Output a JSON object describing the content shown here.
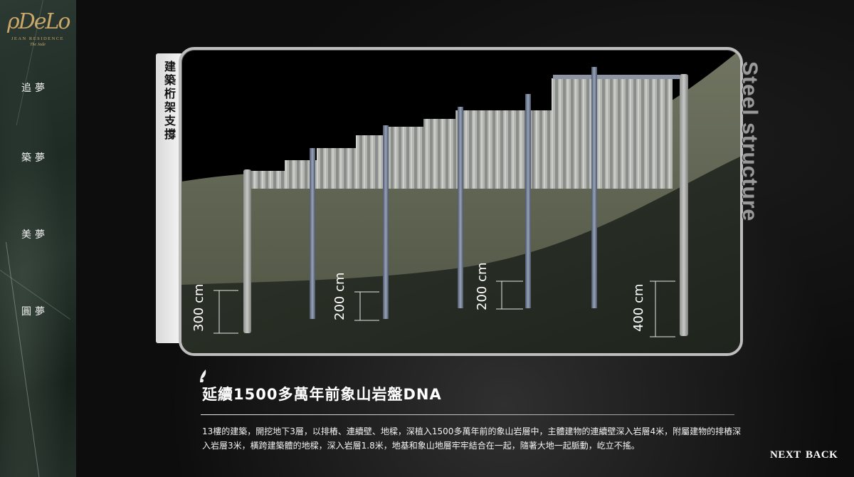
{
  "logo": {
    "mark": "ρDeLo",
    "line1": "JEAN RESIDENCE",
    "line2": "The Jade"
  },
  "nav": [
    {
      "label": "追夢"
    },
    {
      "label": "築夢"
    },
    {
      "label": "美夢"
    },
    {
      "label": "圓夢"
    }
  ],
  "diagram": {
    "side_label": "建築桁架支撐",
    "title": "Steel structure",
    "dimensions": [
      {
        "label": "300 cm"
      },
      {
        "label": "200 cm"
      },
      {
        "label": "200 cm"
      },
      {
        "label": "400 cm"
      }
    ]
  },
  "article": {
    "heading": "延續1500多萬年前象山岩盤DNA",
    "body": "13樓的建築，開挖地下3層，以排樁、連續壁、地樑，深植入1500多萬年前的象山岩層中，主體建物的連續壁深入岩層4米，附屬建物的排樁深入岩層3米，橫跨建築體的地樑，深入岩層1.8米，地基和象山地層牢牢結合在一起，隨著大地一起脈動，屹立不搖。"
  },
  "buttons": {
    "next": "NEXT",
    "back": "BACK"
  },
  "colors": {
    "logo_gold": "#c9a86a",
    "sidebar_marble": "#26332c",
    "soil": "#5e6250",
    "rock": "#2b3028",
    "steel": "#6e7a90"
  }
}
